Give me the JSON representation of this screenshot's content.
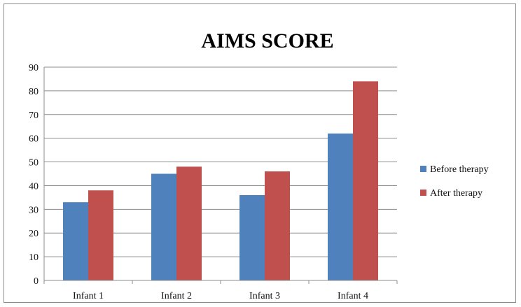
{
  "chart_data": {
    "type": "bar",
    "title": "AIMS SCORE",
    "xlabel": "",
    "ylabel": "",
    "categories": [
      "Infant 1",
      "Infant 2",
      "Infant 3",
      "Infant 4"
    ],
    "series": [
      {
        "name": "Before therapy",
        "values": [
          33,
          45,
          36,
          62
        ],
        "color": "#4f81bd"
      },
      {
        "name": "After therapy",
        "values": [
          38,
          48,
          46,
          84
        ],
        "color": "#c0504d"
      }
    ],
    "ylim": [
      0,
      90
    ],
    "yticks": [
      "0",
      "10",
      "20",
      "30",
      "40",
      "50",
      "60",
      "70",
      "80",
      "90"
    ],
    "grid": true,
    "legend_position": "right"
  }
}
